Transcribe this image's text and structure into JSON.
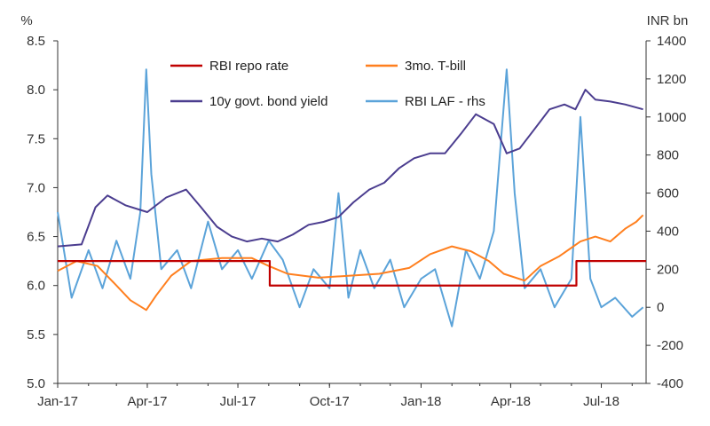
{
  "chart_data": {
    "type": "line",
    "left_axis_unit": "%",
    "right_axis_unit": "INR bn",
    "ylim_left": [
      5.0,
      8.5
    ],
    "ylim_right": [
      -400,
      1400
    ],
    "left_ticks": [
      "5.0",
      "5.5",
      "6.0",
      "6.5",
      "7.0",
      "7.5",
      "8.0",
      "8.5"
    ],
    "right_ticks": [
      "-400",
      "-200",
      "0",
      "200",
      "400",
      "600",
      "800",
      "1000",
      "1200",
      "1400"
    ],
    "x_ticks": [
      "Jan-17",
      "Apr-17",
      "Jul-17",
      "Oct-17",
      "Jan-18",
      "Apr-18",
      "Jul-18"
    ],
    "xlim": [
      "2017-01-01",
      "2018-08-15"
    ],
    "grid": false,
    "legend_position": "top-center",
    "series": [
      {
        "name": "RBI repo rate",
        "axis": "left",
        "color": "#c00000",
        "step": true,
        "x": [
          "2017-01-01",
          "2017-08-02",
          "2018-06-06",
          "2018-08-15"
        ],
        "y": [
          6.25,
          6.0,
          6.25,
          6.25
        ]
      },
      {
        "name": "3mo. T-bill",
        "axis": "left",
        "color": "#ff7f1e",
        "x": [
          "2017-01-01",
          "2017-01-20",
          "2017-02-10",
          "2017-03-01",
          "2017-03-15",
          "2017-03-31",
          "2017-04-10",
          "2017-04-25",
          "2017-05-15",
          "2017-06-15",
          "2017-07-15",
          "2017-08-01",
          "2017-08-20",
          "2017-09-20",
          "2017-10-20",
          "2017-11-20",
          "2017-12-20",
          "2018-01-10",
          "2018-02-01",
          "2018-02-20",
          "2018-03-10",
          "2018-03-25",
          "2018-04-15",
          "2018-05-01",
          "2018-05-20",
          "2018-06-10",
          "2018-06-25",
          "2018-07-10",
          "2018-07-25",
          "2018-08-05",
          "2018-08-12"
        ],
        "y": [
          6.15,
          6.25,
          6.2,
          6.0,
          5.85,
          5.75,
          5.9,
          6.1,
          6.25,
          6.28,
          6.28,
          6.2,
          6.12,
          6.08,
          6.1,
          6.12,
          6.18,
          6.32,
          6.4,
          6.35,
          6.25,
          6.12,
          6.05,
          6.2,
          6.3,
          6.45,
          6.5,
          6.45,
          6.58,
          6.65,
          6.72
        ]
      },
      {
        "name": "10y govt. bond yield",
        "axis": "left",
        "color": "#4b3d8f",
        "x": [
          "2017-01-01",
          "2017-01-25",
          "2017-02-08",
          "2017-02-20",
          "2017-03-10",
          "2017-04-01",
          "2017-04-20",
          "2017-05-10",
          "2017-05-25",
          "2017-06-10",
          "2017-06-25",
          "2017-07-10",
          "2017-07-25",
          "2017-08-10",
          "2017-08-25",
          "2017-09-10",
          "2017-09-25",
          "2017-10-10",
          "2017-10-25",
          "2017-11-10",
          "2017-11-25",
          "2017-12-10",
          "2017-12-25",
          "2018-01-10",
          "2018-01-25",
          "2018-02-10",
          "2018-02-25",
          "2018-03-15",
          "2018-03-28",
          "2018-04-10",
          "2018-04-25",
          "2018-05-10",
          "2018-05-25",
          "2018-06-05",
          "2018-06-15",
          "2018-06-25",
          "2018-07-10",
          "2018-07-25",
          "2018-08-12"
        ],
        "y": [
          6.4,
          6.42,
          6.8,
          6.92,
          6.82,
          6.75,
          6.9,
          6.98,
          6.8,
          6.6,
          6.5,
          6.45,
          6.48,
          6.45,
          6.52,
          6.62,
          6.65,
          6.7,
          6.85,
          6.98,
          7.05,
          7.2,
          7.3,
          7.35,
          7.35,
          7.55,
          7.75,
          7.65,
          7.35,
          7.4,
          7.6,
          7.8,
          7.85,
          7.8,
          8.0,
          7.9,
          7.88,
          7.85,
          7.8
        ]
      },
      {
        "name": "RBI LAF - rhs",
        "axis": "right",
        "color": "#5ba3d9",
        "x": [
          "2017-01-01",
          "2017-01-15",
          "2017-02-01",
          "2017-02-15",
          "2017-03-01",
          "2017-03-15",
          "2017-03-25",
          "2017-03-31",
          "2017-04-05",
          "2017-04-15",
          "2017-05-01",
          "2017-05-15",
          "2017-06-01",
          "2017-06-15",
          "2017-07-01",
          "2017-07-15",
          "2017-08-01",
          "2017-08-15",
          "2017-09-01",
          "2017-09-15",
          "2017-10-01",
          "2017-10-10",
          "2017-10-20",
          "2017-11-01",
          "2017-11-15",
          "2017-12-01",
          "2017-12-15",
          "2018-01-01",
          "2018-01-15",
          "2018-02-01",
          "2018-02-15",
          "2018-03-01",
          "2018-03-15",
          "2018-03-28",
          "2018-04-05",
          "2018-04-15",
          "2018-05-01",
          "2018-05-15",
          "2018-06-01",
          "2018-06-10",
          "2018-06-20",
          "2018-07-01",
          "2018-07-15",
          "2018-08-01",
          "2018-08-12"
        ],
        "y": [
          500,
          50,
          300,
          100,
          350,
          150,
          500,
          1250,
          700,
          200,
          300,
          100,
          450,
          200,
          300,
          150,
          350,
          250,
          0,
          200,
          100,
          600,
          50,
          300,
          100,
          250,
          0,
          150,
          200,
          -100,
          300,
          150,
          400,
          1250,
          600,
          100,
          200,
          0,
          150,
          1000,
          150,
          0,
          50,
          -50,
          0
        ]
      }
    ]
  }
}
